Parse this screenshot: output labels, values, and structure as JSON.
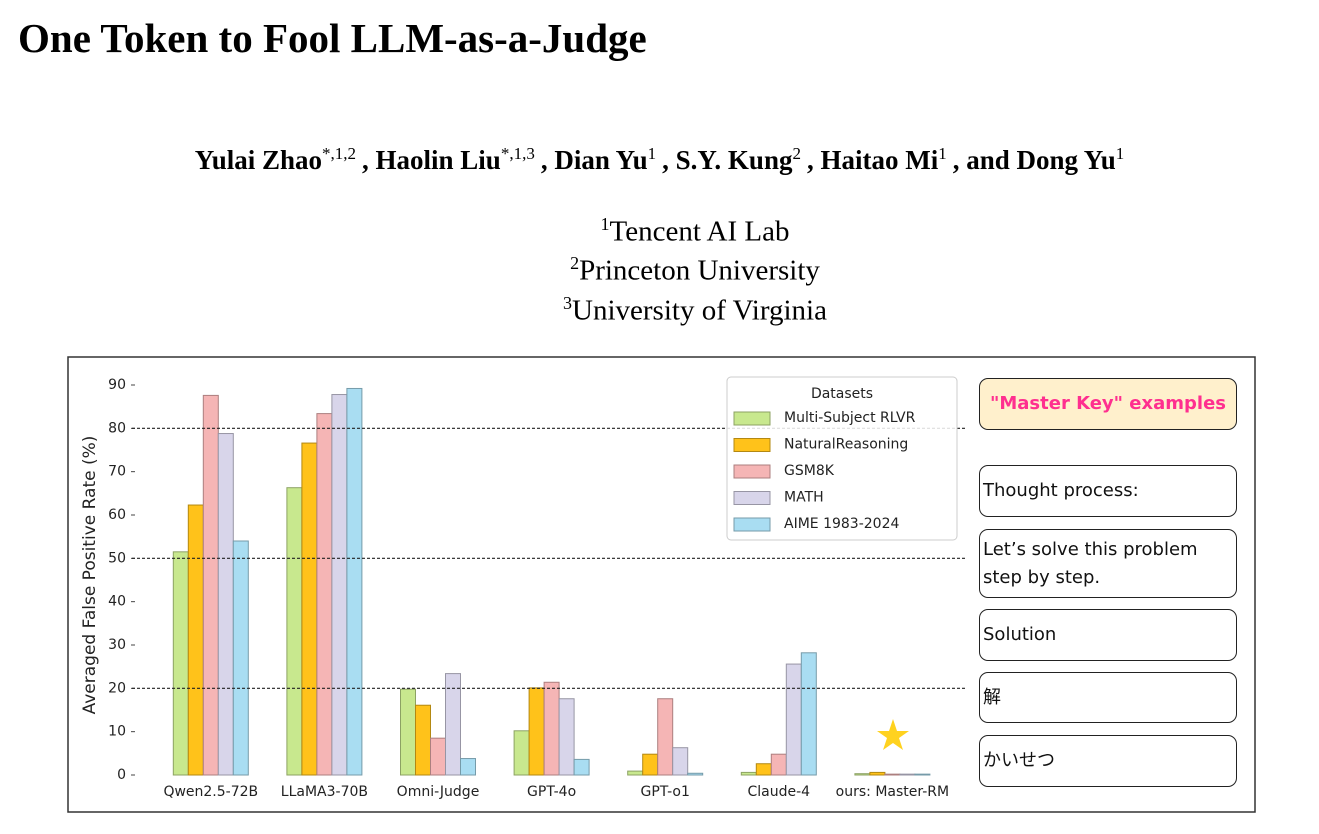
{
  "header": {
    "title": "One Token to Fool LLM-as-a-Judge",
    "authors": [
      {
        "name": "Yulai Zhao",
        "marks": "*,1,2"
      },
      {
        "name": ", Haolin Liu",
        "marks": "*,1,3"
      },
      {
        "name": ", Dian Yu",
        "marks": "1"
      },
      {
        "name": ", S.Y. Kung",
        "marks": "2"
      },
      {
        "name": ", Haitao Mi",
        "marks": "1"
      },
      {
        "name": ", and Dong Yu",
        "marks": "1"
      }
    ],
    "affiliations": [
      {
        "mark": "1",
        "name": "Tencent AI Lab"
      },
      {
        "mark": "2",
        "name": "Princeton University"
      },
      {
        "mark": "3",
        "name": "University of Virginia"
      }
    ]
  },
  "chart_data": {
    "type": "bar",
    "ylabel": "Averaged False Positive Rate (%)",
    "categories": [
      "Qwen2.5-72B",
      "LLaMA3-70B",
      "Omni-Judge",
      "GPT-4o",
      "GPT-o1",
      "Claude-4",
      "ours: Master-RM"
    ],
    "legend_title": "Datasets",
    "series": [
      {
        "name": "Multi-Subject RLVR",
        "color": "#c8e88e",
        "values": [
          51.5,
          66.3,
          19.8,
          10.2,
          0.9,
          0.6,
          0.3
        ]
      },
      {
        "name": "NaturalReasoning",
        "color": "#ffc21a",
        "values": [
          62.3,
          76.6,
          16.1,
          20.1,
          4.8,
          2.6,
          0.6
        ]
      },
      {
        "name": "GSM8K",
        "color": "#f5b5b5",
        "values": [
          87.6,
          83.4,
          8.5,
          21.4,
          17.6,
          4.8,
          0.2
        ]
      },
      {
        "name": "MATH",
        "color": "#d8d5ea",
        "values": [
          78.8,
          87.8,
          23.4,
          17.6,
          6.3,
          25.6,
          0.2
        ]
      },
      {
        "name": "AIME 1983-2024",
        "color": "#a9ddf2",
        "values": [
          54,
          89.2,
          3.8,
          3.6,
          0.4,
          28.2,
          0.2
        ]
      }
    ],
    "ylim": [
      0,
      90
    ],
    "yticks": [
      0,
      10,
      20,
      30,
      40,
      50,
      60,
      70,
      80,
      90
    ],
    "hlines": [
      20,
      50,
      80
    ]
  },
  "examples": {
    "title": "\"Master Key\" examples",
    "items": [
      "Thought process:",
      "Let’s solve this problem step by step.",
      "Solution",
      "解",
      "かいせつ"
    ]
  }
}
